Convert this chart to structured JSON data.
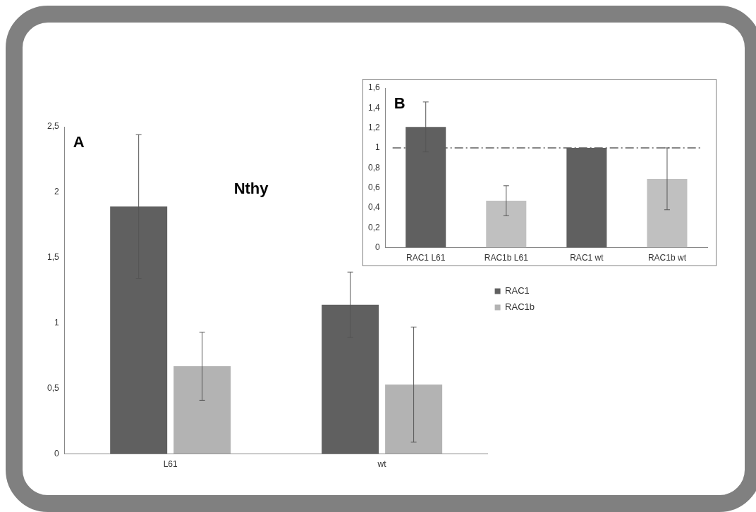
{
  "chart_data": [
    {
      "type": "bar",
      "categories": [
        "L61",
        "wt"
      ],
      "series": [
        {
          "name": "RAC1",
          "color": "#606060",
          "values": [
            1.89,
            1.14
          ],
          "errors": [
            0.55,
            0.25
          ]
        },
        {
          "name": "RAC1b",
          "color": "#b3b3b3",
          "values": [
            0.67,
            0.53
          ],
          "errors": [
            0.26,
            0.44
          ]
        }
      ],
      "ylim": [
        0,
        2.5
      ],
      "yticks": [
        0,
        {
          "value": 0.5,
          "label": "0,5"
        },
        1,
        {
          "value": 1.5,
          "label": "1,5"
        },
        2,
        {
          "value": 2.5,
          "label": "2,5"
        }
      ],
      "grid": false,
      "legend": "right",
      "annotations": [
        "A",
        "Nthy"
      ]
    },
    {
      "type": "bar",
      "categories": [
        "RAC1 L61",
        "RAC1b L61",
        "RAC1 wt",
        "RAC1b wt"
      ],
      "values": [
        1.21,
        0.47,
        1.0,
        0.69
      ],
      "colors": [
        "#606060",
        "#c0c0c0",
        "#606060",
        "#c0c0c0"
      ],
      "errors": [
        0.25,
        0.15,
        null,
        0.31
      ],
      "ylim": [
        0,
        1.6
      ],
      "yticks": [
        0,
        {
          "value": 0.2,
          "label": "0,2"
        },
        {
          "value": 0.4,
          "label": "0,4"
        },
        {
          "value": 0.6,
          "label": "0,6"
        },
        {
          "value": 0.8,
          "label": "0,8"
        },
        1,
        {
          "value": 1.2,
          "label": "1,2"
        },
        {
          "value": 1.4,
          "label": "1,4"
        },
        {
          "value": 1.6,
          "label": "1,6"
        }
      ],
      "grid": false,
      "legend": false,
      "ref_lines": [
        {
          "axis": "y",
          "value": 1,
          "color": "#606060",
          "line_style": "dashdot"
        }
      ],
      "annotations": [
        "B"
      ]
    }
  ]
}
